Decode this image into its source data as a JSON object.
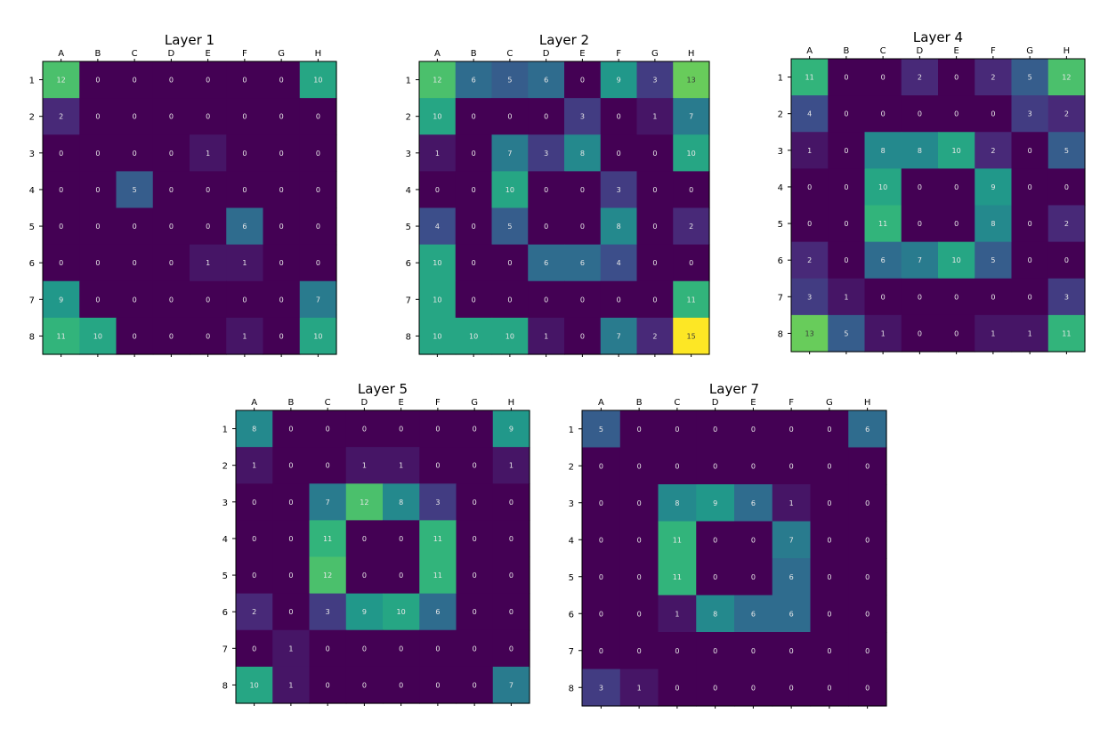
{
  "chart_data": [
    {
      "type": "heatmap",
      "title": "Layer 1",
      "x_categories": [
        "A",
        "B",
        "C",
        "D",
        "E",
        "F",
        "G",
        "H"
      ],
      "y_categories": [
        "1",
        "2",
        "3",
        "4",
        "5",
        "6",
        "7",
        "8"
      ],
      "values": [
        [
          12,
          0,
          0,
          0,
          0,
          0,
          0,
          10
        ],
        [
          2,
          0,
          0,
          0,
          0,
          0,
          0,
          0
        ],
        [
          0,
          0,
          0,
          0,
          1,
          0,
          0,
          0
        ],
        [
          0,
          0,
          5,
          0,
          0,
          0,
          0,
          0
        ],
        [
          0,
          0,
          0,
          0,
          0,
          6,
          0,
          0
        ],
        [
          0,
          0,
          0,
          0,
          1,
          1,
          0,
          0
        ],
        [
          9,
          0,
          0,
          0,
          0,
          0,
          0,
          7
        ],
        [
          11,
          10,
          0,
          0,
          0,
          1,
          0,
          10
        ]
      ],
      "colorscale": "viridis",
      "vmin": 0,
      "vmax": 15,
      "grid": false
    },
    {
      "type": "heatmap",
      "title": "Layer 2",
      "x_categories": [
        "A",
        "B",
        "C",
        "D",
        "E",
        "F",
        "G",
        "H"
      ],
      "y_categories": [
        "1",
        "2",
        "3",
        "4",
        "5",
        "6",
        "7",
        "8"
      ],
      "values": [
        [
          12,
          6,
          5,
          6,
          0,
          9,
          3,
          13
        ],
        [
          10,
          0,
          0,
          0,
          3,
          0,
          1,
          7
        ],
        [
          1,
          0,
          7,
          3,
          8,
          0,
          0,
          10
        ],
        [
          0,
          0,
          10,
          0,
          0,
          3,
          0,
          0
        ],
        [
          4,
          0,
          5,
          0,
          0,
          8,
          0,
          2
        ],
        [
          10,
          0,
          0,
          6,
          6,
          4,
          0,
          0
        ],
        [
          10,
          0,
          0,
          0,
          0,
          0,
          0,
          11
        ],
        [
          10,
          10,
          10,
          1,
          0,
          7,
          2,
          15
        ]
      ],
      "colorscale": "viridis",
      "vmin": 0,
      "vmax": 15,
      "grid": false
    },
    {
      "type": "heatmap",
      "title": "Layer 4",
      "x_categories": [
        "A",
        "B",
        "C",
        "D",
        "E",
        "F",
        "G",
        "H"
      ],
      "y_categories": [
        "1",
        "2",
        "3",
        "4",
        "5",
        "6",
        "7",
        "8"
      ],
      "values": [
        [
          11,
          0,
          0,
          2,
          0,
          2,
          5,
          12
        ],
        [
          4,
          0,
          0,
          0,
          0,
          0,
          3,
          2
        ],
        [
          1,
          0,
          8,
          8,
          10,
          2,
          0,
          5
        ],
        [
          0,
          0,
          10,
          0,
          0,
          9,
          0,
          0
        ],
        [
          0,
          0,
          11,
          0,
          0,
          8,
          0,
          2
        ],
        [
          2,
          0,
          6,
          7,
          10,
          5,
          0,
          0
        ],
        [
          3,
          1,
          0,
          0,
          0,
          0,
          0,
          3
        ],
        [
          13,
          5,
          1,
          0,
          0,
          1,
          1,
          11
        ]
      ],
      "colorscale": "viridis",
      "vmin": 0,
      "vmax": 15,
      "grid": false
    },
    {
      "type": "heatmap",
      "title": "Layer 5",
      "x_categories": [
        "A",
        "B",
        "C",
        "D",
        "E",
        "F",
        "G",
        "H"
      ],
      "y_categories": [
        "1",
        "2",
        "3",
        "4",
        "5",
        "6",
        "7",
        "8"
      ],
      "values": [
        [
          8,
          0,
          0,
          0,
          0,
          0,
          0,
          9
        ],
        [
          1,
          0,
          0,
          1,
          1,
          0,
          0,
          1
        ],
        [
          0,
          0,
          7,
          12,
          8,
          3,
          0,
          0
        ],
        [
          0,
          0,
          11,
          0,
          0,
          11,
          0,
          0
        ],
        [
          0,
          0,
          12,
          0,
          0,
          11,
          0,
          0
        ],
        [
          2,
          0,
          3,
          9,
          10,
          6,
          0,
          0
        ],
        [
          0,
          1,
          0,
          0,
          0,
          0,
          0,
          0
        ],
        [
          10,
          1,
          0,
          0,
          0,
          0,
          0,
          7
        ]
      ],
      "colorscale": "viridis",
      "vmin": 0,
      "vmax": 15,
      "grid": false
    },
    {
      "type": "heatmap",
      "title": "Layer 7",
      "x_categories": [
        "A",
        "B",
        "C",
        "D",
        "E",
        "F",
        "G",
        "H"
      ],
      "y_categories": [
        "1",
        "2",
        "3",
        "4",
        "5",
        "6",
        "7",
        "8"
      ],
      "values": [
        [
          5,
          0,
          0,
          0,
          0,
          0,
          0,
          6
        ],
        [
          0,
          0,
          0,
          0,
          0,
          0,
          0,
          0
        ],
        [
          0,
          0,
          8,
          9,
          6,
          1,
          0,
          0
        ],
        [
          0,
          0,
          11,
          0,
          0,
          7,
          0,
          0
        ],
        [
          0,
          0,
          11,
          0,
          0,
          6,
          0,
          0
        ],
        [
          0,
          0,
          1,
          8,
          6,
          6,
          0,
          0
        ],
        [
          0,
          0,
          0,
          0,
          0,
          0,
          0,
          0
        ],
        [
          3,
          1,
          0,
          0,
          0,
          0,
          0,
          0
        ]
      ],
      "colorscale": "viridis",
      "vmin": 0,
      "vmax": 15,
      "grid": false
    }
  ]
}
